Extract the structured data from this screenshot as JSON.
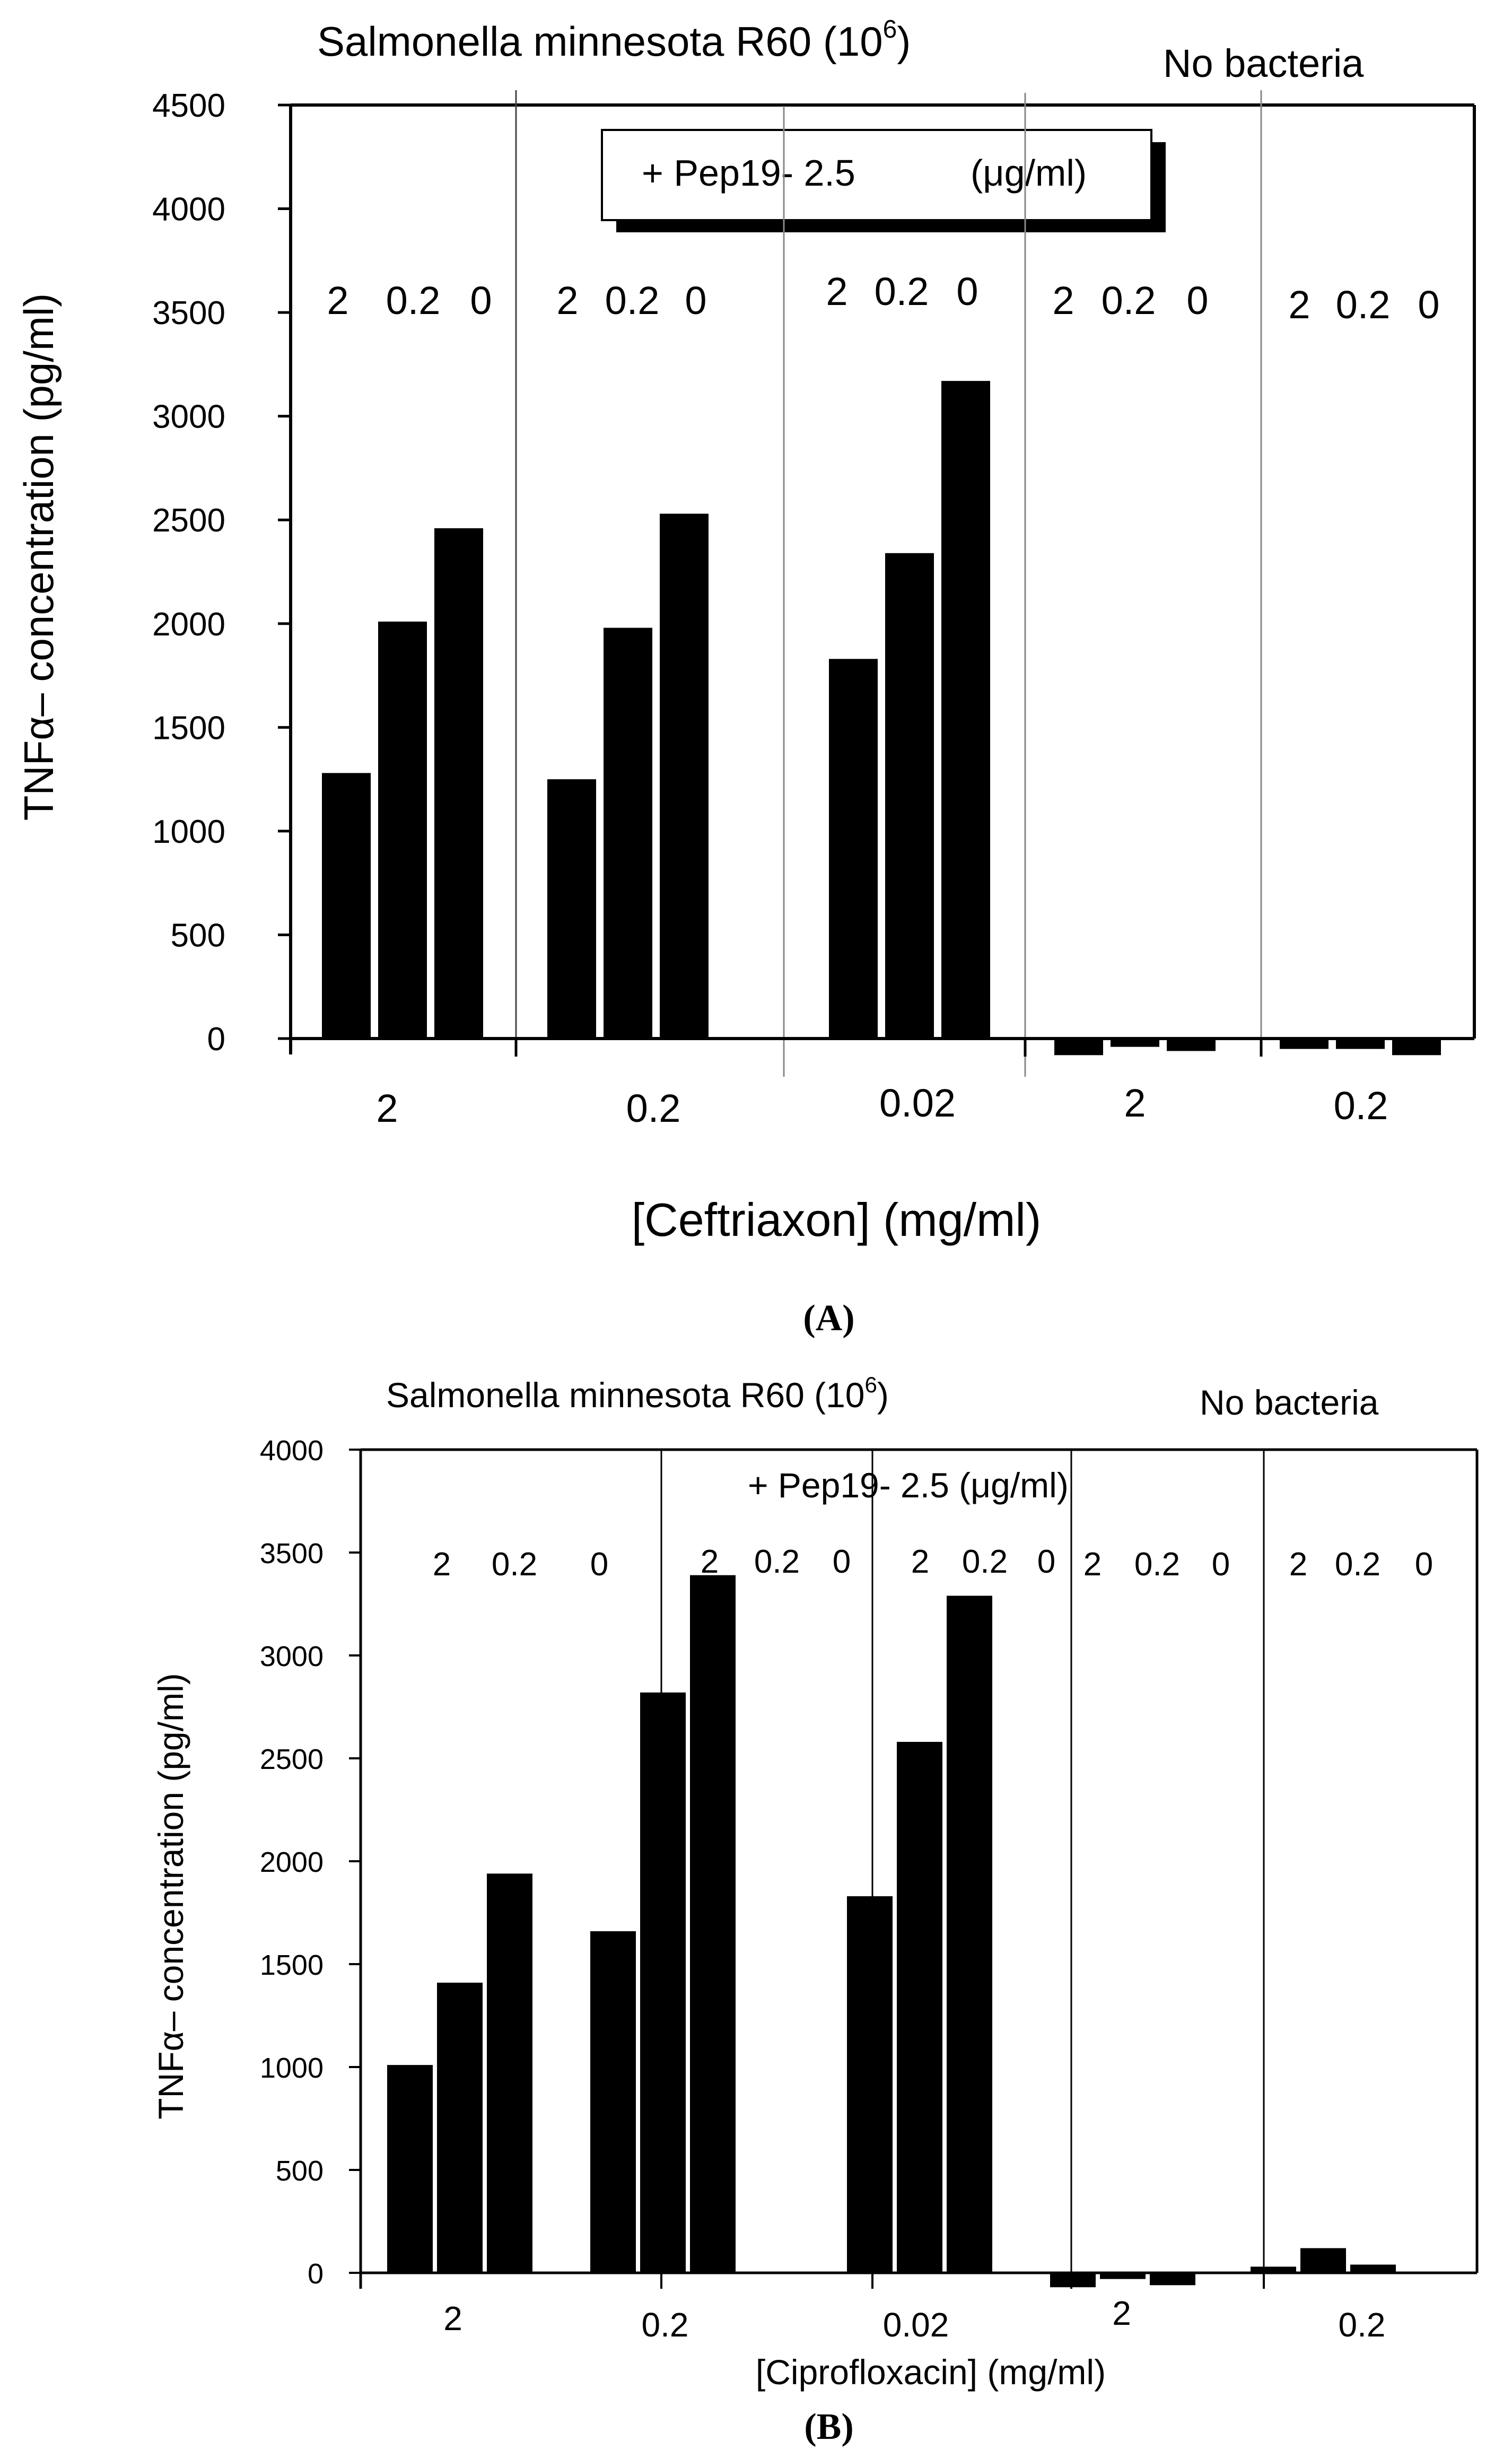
{
  "figure": {
    "panel_a_caption": "A",
    "panel_b_caption": "B"
  },
  "chart_data": [
    {
      "panel": "A",
      "type": "bar",
      "title": "Salmonella minnesota R60 (10",
      "title_superscript": "6",
      "title_suffix": ")",
      "right_header": "No bacteria",
      "legend": "+ Pep19- 2.5",
      "legend_unit": "(μg/ml)",
      "ylabel": "TNFα– concentration (pg/ml)",
      "xlabel": "[Ceftriaxon] (mg/ml)",
      "ylim": [
        0,
        4500
      ],
      "yticks": [
        0,
        500,
        1000,
        1500,
        2000,
        2500,
        3000,
        3500,
        4000,
        4500
      ],
      "groups": [
        {
          "category": "2",
          "sublabels": [
            "2",
            "0.2",
            "0"
          ],
          "values": [
            1280,
            2010,
            2460
          ]
        },
        {
          "category": "0.2",
          "sublabels": [
            "2",
            "0.2",
            "0"
          ],
          "values": [
            1250,
            1980,
            2530
          ]
        },
        {
          "category": "0.02",
          "sublabels": [
            "2",
            "0.2",
            "0"
          ],
          "values": [
            1830,
            2340,
            3170
          ]
        },
        {
          "category": "2",
          "sublabels": [
            "2",
            "0.2",
            "0"
          ],
          "values": [
            -80,
            -40,
            -60
          ]
        },
        {
          "category": "0.2",
          "sublabels": [
            "2",
            "0.2",
            "0"
          ],
          "values": [
            -50,
            -50,
            -80
          ]
        }
      ]
    },
    {
      "panel": "B",
      "type": "bar",
      "title": "Salmonella minnesota R60 (10",
      "title_superscript": "6",
      "title_suffix": ")",
      "right_header": "No bacteria",
      "legend": "+ Pep19- 2.5 (μg/ml)",
      "ylabel": "TNFα– concentration (pg/ml)",
      "xlabel": "[Ciprofloxacin] (mg/ml)",
      "ylim": [
        0,
        4000
      ],
      "yticks": [
        0,
        500,
        1000,
        1500,
        2000,
        2500,
        3000,
        3500,
        4000
      ],
      "groups": [
        {
          "category": "2",
          "sublabels": [
            "2",
            "0.2",
            "0"
          ],
          "values": [
            1010,
            1410,
            1940
          ]
        },
        {
          "category": "0.2",
          "sublabels": [
            "2",
            "0.2",
            "0"
          ],
          "values": [
            1660,
            2820,
            3390
          ]
        },
        {
          "category": "0.02",
          "sublabels": [
            "2",
            "0.2",
            "0"
          ],
          "values": [
            1830,
            2580,
            3290
          ]
        },
        {
          "category": "2",
          "sublabels": [
            "2",
            "0.2",
            "0"
          ],
          "values": [
            -70,
            -30,
            -60
          ]
        },
        {
          "category": "0.2",
          "sublabels": [
            "2",
            "0.2",
            "0"
          ],
          "values": [
            30,
            120,
            40
          ]
        }
      ]
    }
  ]
}
